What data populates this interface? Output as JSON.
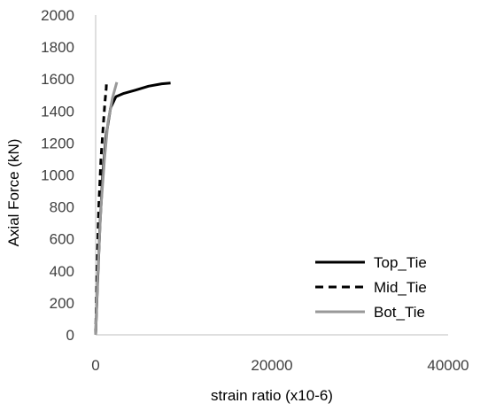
{
  "chart_data": {
    "type": "line",
    "title": "",
    "xlabel": "strain ratio (x10-6)",
    "ylabel": "Axial Force (kN)",
    "xlim": [
      0,
      40000
    ],
    "ylim": [
      0,
      2000
    ],
    "xticks": [
      0,
      20000,
      40000
    ],
    "yticks": [
      0,
      200,
      400,
      600,
      800,
      1000,
      1200,
      1400,
      1600,
      1800,
      2000
    ],
    "xtick_labels": [
      "0",
      "20000",
      "40000"
    ],
    "ytick_labels": [
      "0",
      "200",
      "400",
      "600",
      "800",
      "1000",
      "1200",
      "1400",
      "1600",
      "1800",
      "2000"
    ],
    "grid": false,
    "legend_position": "bottom-right",
    "series": [
      {
        "name": "Top_Tie",
        "color": "#000000",
        "style": "solid",
        "points": [
          [
            0,
            0
          ],
          [
            200,
            300
          ],
          [
            500,
            700
          ],
          [
            800,
            1000
          ],
          [
            1200,
            1250
          ],
          [
            1700,
            1420
          ],
          [
            2300,
            1490
          ],
          [
            3200,
            1510
          ],
          [
            4500,
            1530
          ],
          [
            6000,
            1555
          ],
          [
            7500,
            1570
          ],
          [
            8500,
            1575
          ]
        ]
      },
      {
        "name": "Mid_Tie",
        "color": "#000000",
        "style": "dashed",
        "points": [
          [
            0,
            0
          ],
          [
            150,
            400
          ],
          [
            350,
            800
          ],
          [
            600,
            1100
          ],
          [
            850,
            1300
          ],
          [
            1050,
            1450
          ],
          [
            1200,
            1540
          ],
          [
            1250,
            1590
          ]
        ]
      },
      {
        "name": "Bot_Tie",
        "color": "#999999",
        "style": "solid",
        "points": [
          [
            0,
            0
          ],
          [
            250,
            400
          ],
          [
            600,
            800
          ],
          [
            1000,
            1100
          ],
          [
            1400,
            1330
          ],
          [
            1900,
            1480
          ],
          [
            2400,
            1580
          ]
        ]
      }
    ]
  }
}
